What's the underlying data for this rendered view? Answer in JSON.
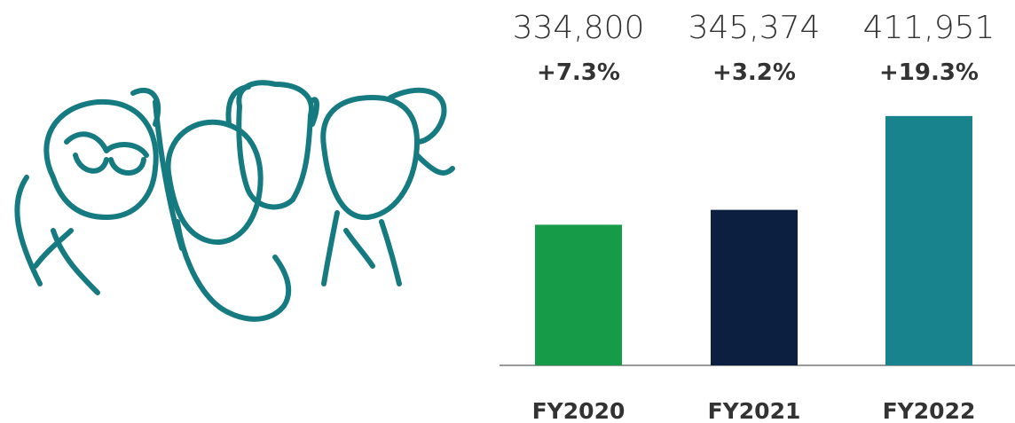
{
  "chart_data": {
    "type": "bar",
    "categories": [
      "FY2020",
      "FY2021",
      "FY2022"
    ],
    "values": [
      334800,
      345374,
      411951
    ],
    "value_labels": [
      "334,800",
      "345,374",
      "411,951"
    ],
    "annotations": [
      "+7.3%",
      "+3.2%",
      "+19.3%"
    ],
    "colors": [
      "#169b48",
      "#0c1f40",
      "#18838c"
    ],
    "ylim": [
      235000,
      415000
    ]
  }
}
